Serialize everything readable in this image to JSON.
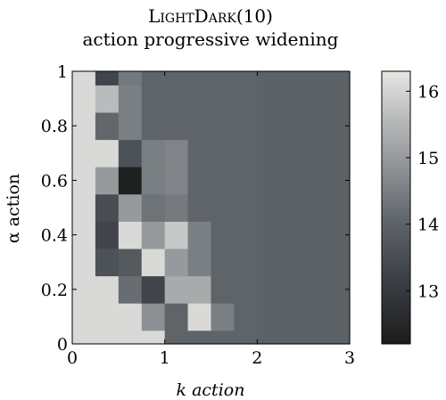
{
  "chart_data": {
    "type": "heatmap",
    "title": "LightDark(10)",
    "subtitle": "action progressive widening",
    "xlabel": "k action",
    "ylabel": "α action",
    "xlim": [
      0,
      3
    ],
    "ylim": [
      0,
      1
    ],
    "x_ticks": [
      "0",
      "1",
      "2",
      "3"
    ],
    "y_ticks": [
      "0",
      "0.2",
      "0.4",
      "0.6",
      "0.8",
      "1"
    ],
    "x_edges": [
      0,
      0.25,
      0.5,
      0.75,
      1.0,
      1.25,
      1.5,
      1.75,
      2.0,
      2.25,
      2.5,
      2.75,
      3.0
    ],
    "y_edges": [
      0,
      0.05,
      0.15,
      0.25,
      0.35,
      0.45,
      0.55,
      0.65,
      0.75,
      0.85,
      0.95,
      1.0
    ],
    "colorbar": {
      "min": 12.2,
      "max": 16.3,
      "ticks": [
        13,
        14,
        15,
        16
      ]
    },
    "values": [
      [
        16.1,
        16.1,
        16.1,
        16.1,
        14.05,
        14.05,
        14.05,
        14.05,
        14.0,
        14.0,
        14.0,
        14.0
      ],
      [
        16.1,
        16.1,
        16.1,
        14.8,
        14.05,
        16.1,
        14.5,
        14.05,
        14.0,
        14.0,
        14.0,
        14.0
      ],
      [
        16.1,
        16.1,
        14.2,
        13.3,
        15.3,
        15.3,
        14.05,
        14.05,
        14.0,
        14.0,
        14.0,
        14.0
      ],
      [
        16.1,
        13.6,
        13.8,
        16.1,
        15.0,
        14.5,
        14.05,
        14.05,
        14.0,
        14.0,
        14.0,
        14.0
      ],
      [
        16.1,
        13.3,
        16.1,
        15.0,
        15.8,
        14.5,
        14.05,
        14.05,
        14.0,
        14.0,
        14.0,
        14.0
      ],
      [
        16.1,
        13.5,
        15.0,
        14.3,
        14.4,
        14.05,
        14.05,
        14.05,
        14.0,
        14.0,
        14.0,
        14.0
      ],
      [
        16.1,
        15.0,
        12.3,
        14.5,
        14.6,
        14.05,
        14.05,
        14.05,
        14.0,
        14.0,
        14.0,
        14.0
      ],
      [
        16.1,
        16.1,
        13.6,
        14.5,
        14.6,
        14.05,
        14.05,
        14.05,
        14.0,
        14.0,
        14.0,
        14.0
      ],
      [
        16.1,
        14.1,
        14.5,
        14.05,
        14.05,
        14.05,
        14.05,
        14.05,
        14.0,
        14.0,
        14.0,
        14.0
      ],
      [
        16.1,
        15.6,
        14.5,
        14.05,
        14.05,
        14.05,
        14.05,
        14.05,
        14.0,
        14.0,
        14.0,
        14.0
      ],
      [
        16.1,
        13.3,
        14.4,
        14.05,
        14.05,
        14.05,
        14.05,
        14.05,
        14.0,
        14.0,
        14.0,
        14.0
      ]
    ]
  }
}
